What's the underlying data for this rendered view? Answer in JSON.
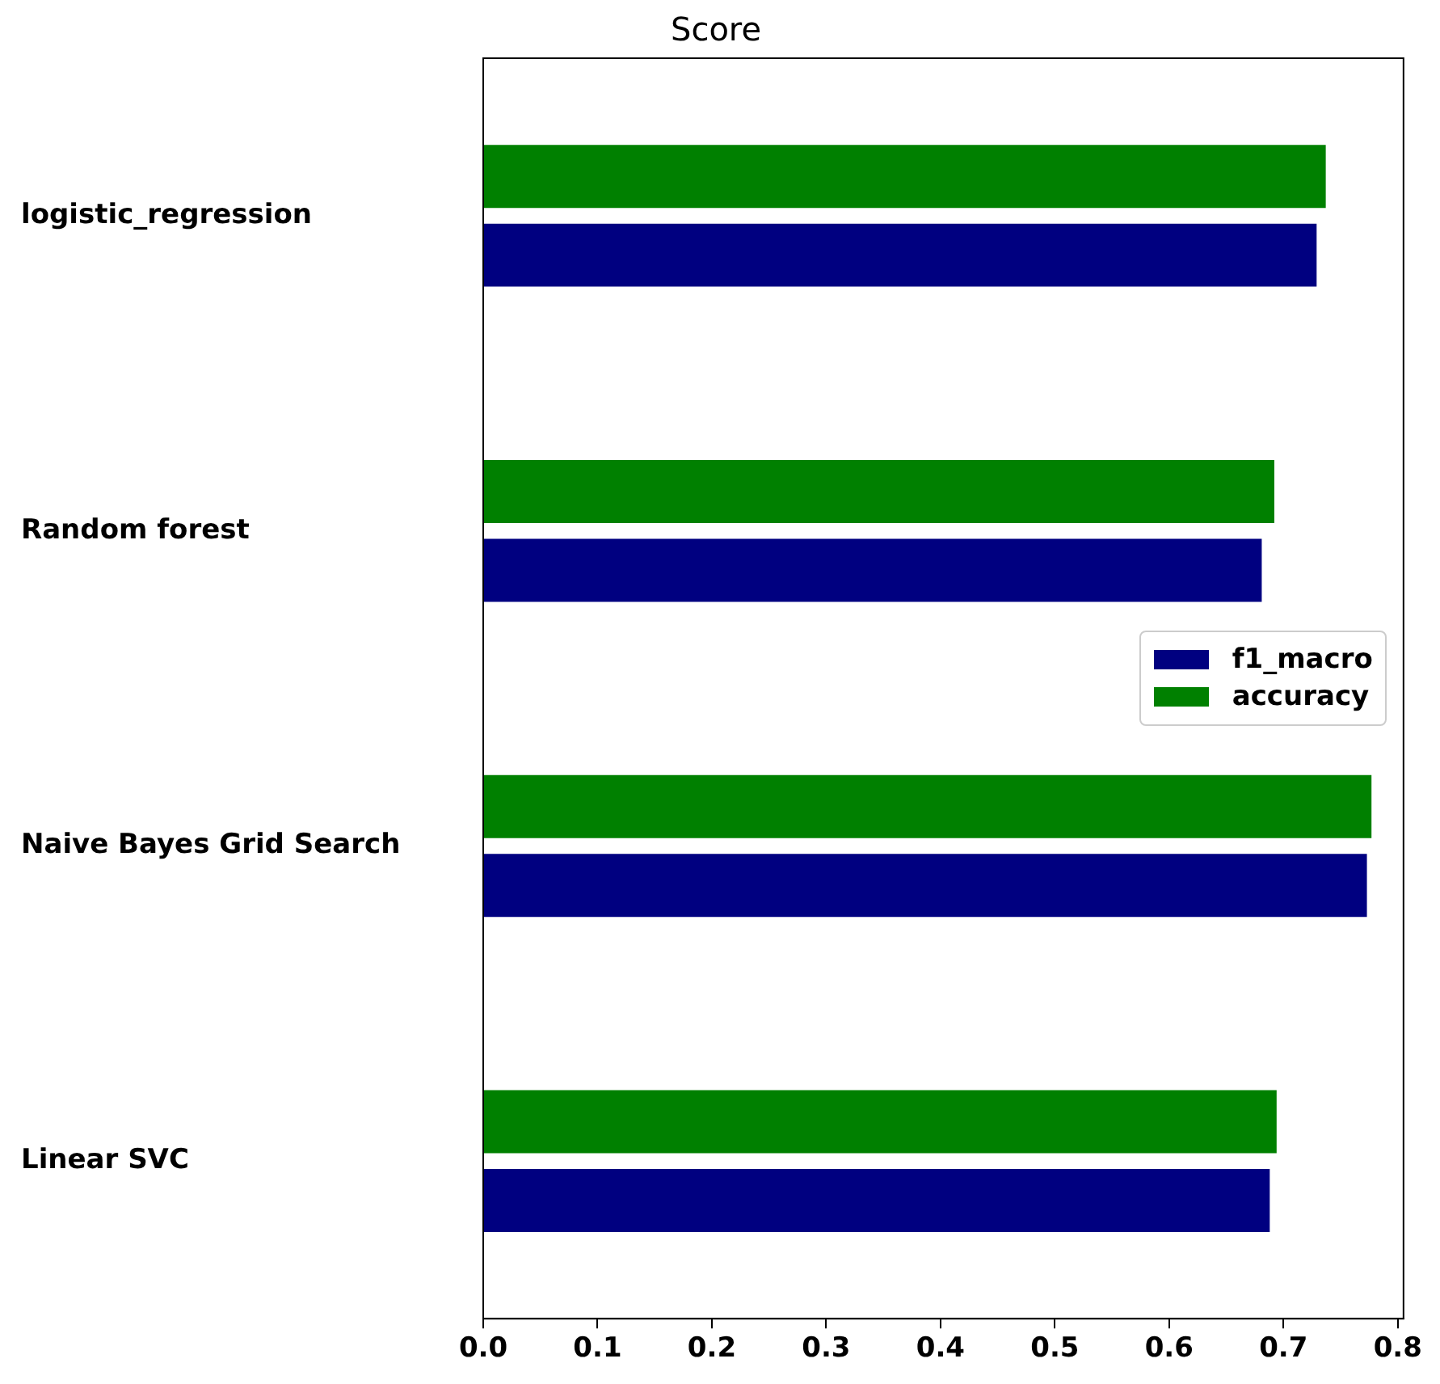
{
  "chart_data": {
    "type": "bar",
    "orientation": "horizontal",
    "title": "Score",
    "categories": [
      "logistic_regression",
      "Random forest",
      "Naive Bayes Grid Search",
      "Linear SVC"
    ],
    "series": [
      {
        "name": "f1_macro",
        "color": "#000080",
        "values": [
          0.729,
          0.681,
          0.773,
          0.688
        ]
      },
      {
        "name": "accuracy",
        "color": "#008000",
        "values": [
          0.737,
          0.692,
          0.777,
          0.694
        ]
      }
    ],
    "xlim": [
      0,
      0.805
    ],
    "xticks": [
      {
        "value": 0,
        "label": "0.0"
      },
      0.1,
      0.2,
      0.3,
      0.4,
      0.5,
      0.6,
      0.7,
      0.8
    ],
    "grid": false,
    "legend": "right"
  }
}
